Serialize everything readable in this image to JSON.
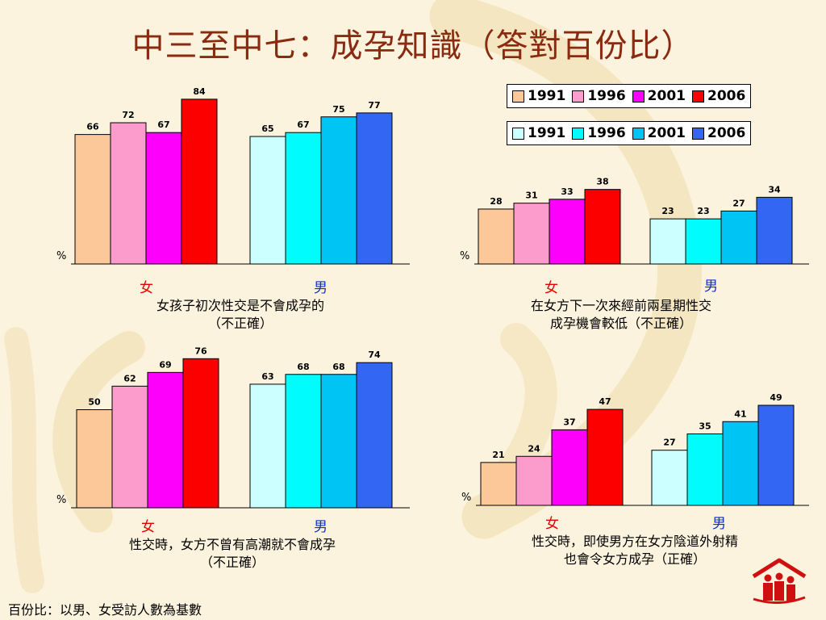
{
  "title": "中三至中七：成孕知識（答對百份比）",
  "footer": "百份比：以男、女受訪人數為基數",
  "unit_label": "%",
  "gender_labels": {
    "female": "女",
    "male": "男"
  },
  "legend_female": {
    "items": [
      {
        "label": "1991",
        "color": "#fcc89a"
      },
      {
        "label": "1996",
        "color": "#fc9ccc"
      },
      {
        "label": "2001",
        "color": "#fc00fc"
      },
      {
        "label": "2006",
        "color": "#fc0000"
      }
    ]
  },
  "legend_male": {
    "items": [
      {
        "label": "1991",
        "color": "#ccffff"
      },
      {
        "label": "1996",
        "color": "#00fcfc"
      },
      {
        "label": "2001",
        "color": "#00c4f4"
      },
      {
        "label": "2006",
        "color": "#3466f4"
      }
    ]
  },
  "captions": {
    "c1": {
      "line1": "女孩子初次性交是不會成孕的",
      "line2": "（不正確）"
    },
    "c2": {
      "line1": "在女方下一次來經前兩星期性交",
      "line2": "成孕機會較低（不正確）"
    },
    "c3": {
      "line1": "性交時，女方不曾有高潮就不會成孕",
      "line2": "（不正確）"
    },
    "c4": {
      "line1": "性交時，即使男方在女方陰道外射精",
      "line2": "也會令女方成孕（正確）"
    }
  },
  "chart_data": [
    {
      "type": "bar",
      "categories": [
        "女",
        "男"
      ],
      "years": [
        "1991",
        "1996",
        "2001",
        "2006"
      ],
      "values": {
        "女": [
          66,
          72,
          67,
          84
        ],
        "男": [
          65,
          67,
          75,
          77
        ]
      },
      "ylim": [
        0,
        100
      ]
    },
    {
      "type": "bar",
      "categories": [
        "女",
        "男"
      ],
      "years": [
        "1991",
        "1996",
        "2001",
        "2006"
      ],
      "values": {
        "女": [
          28,
          31,
          33,
          38
        ],
        "男": [
          23,
          23,
          27,
          34
        ]
      },
      "ylim": [
        0,
        100
      ]
    },
    {
      "type": "bar",
      "categories": [
        "女",
        "男"
      ],
      "years": [
        "1991",
        "1996",
        "2001",
        "2006"
      ],
      "values": {
        "女": [
          50,
          62,
          69,
          76
        ],
        "男": [
          63,
          68,
          68,
          74
        ]
      },
      "ylim": [
        0,
        100
      ]
    },
    {
      "type": "bar",
      "categories": [
        "女",
        "男"
      ],
      "years": [
        "1991",
        "1996",
        "2001",
        "2006"
      ],
      "values": {
        "女": [
          21,
          24,
          37,
          47
        ],
        "男": [
          27,
          35,
          41,
          49
        ]
      },
      "ylim": [
        0,
        100
      ]
    }
  ]
}
